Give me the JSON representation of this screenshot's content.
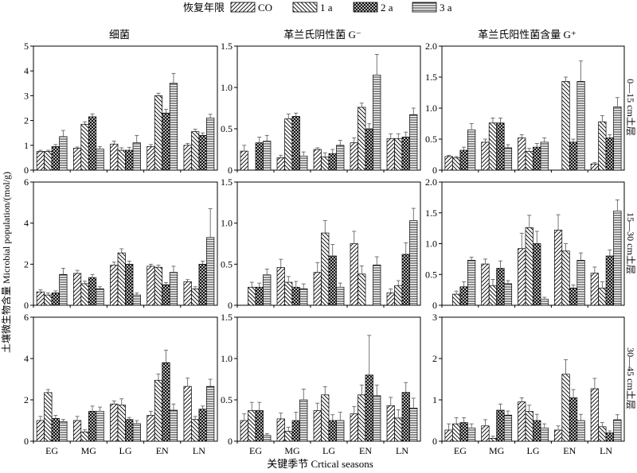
{
  "legend": {
    "title": "恢复年限",
    "entries": [
      "CO",
      "1 a",
      "2 a",
      "3 a"
    ]
  },
  "column_titles": [
    "细菌",
    "革兰氏阴性菌 G⁻",
    "革兰氏阳性菌含量 G⁺"
  ],
  "row_labels": [
    "0—15 cm土层",
    "15—30 cm土层",
    "30—45 cm土层"
  ],
  "ylabel": "土壤微生物含量 Microbial population/(mol/g)",
  "xlabel": "关键季节 Crtical seasons",
  "colors": {
    "ink": "#000000",
    "background": "#ffffff"
  },
  "chart_data": [
    {
      "type": "bar",
      "row": "0—15 cm土层",
      "column": "细菌",
      "ylim": [
        0,
        5
      ],
      "yticks": [
        "0",
        "1",
        "2",
        "3",
        "4",
        "5"
      ],
      "categories": [
        "EG",
        "MG",
        "LG",
        "EN",
        "LN"
      ],
      "series": [
        {
          "name": "CO",
          "values": [
            0.75,
            0.88,
            1.05,
            0.95,
            1.0
          ],
          "errors": [
            0.05,
            0.05,
            0.12,
            0.08,
            0.08
          ]
        },
        {
          "name": "1 a",
          "values": [
            0.75,
            1.85,
            0.8,
            3.0,
            1.55
          ],
          "errors": [
            0.05,
            0.1,
            0.1,
            0.1,
            0.1
          ]
        },
        {
          "name": "2 a",
          "values": [
            0.95,
            2.15,
            0.8,
            2.3,
            1.4
          ],
          "errors": [
            0.08,
            0.12,
            0.12,
            0.15,
            0.1
          ]
        },
        {
          "name": "3 a",
          "values": [
            1.35,
            0.85,
            1.1,
            3.5,
            2.1
          ],
          "errors": [
            0.25,
            0.1,
            0.3,
            0.4,
            0.15
          ]
        }
      ]
    },
    {
      "type": "bar",
      "row": "0—15 cm土层",
      "column": "革兰氏阴性菌 G⁻",
      "ylim": [
        0,
        1.5
      ],
      "yticks": [
        "0",
        "0.5",
        "1.0",
        "1.5"
      ],
      "categories": [
        "EG",
        "MG",
        "LG",
        "EN",
        "LN"
      ],
      "series": [
        {
          "name": "CO",
          "values": [
            0.23,
            0.15,
            0.25,
            0.33,
            0.38
          ],
          "errors": [
            0.07,
            0.03,
            0.02,
            0.06,
            0.06
          ]
        },
        {
          "name": "1 a",
          "values": [
            0.0,
            0.62,
            0.16,
            0.76,
            0.38
          ],
          "errors": [
            0.0,
            0.06,
            0.05,
            0.05,
            0.06
          ]
        },
        {
          "name": "2 a",
          "values": [
            0.33,
            0.65,
            0.2,
            0.5,
            0.4
          ],
          "errors": [
            0.07,
            0.04,
            0.05,
            0.06,
            0.06
          ]
        },
        {
          "name": "3 a",
          "values": [
            0.35,
            0.17,
            0.3,
            1.15,
            0.67
          ],
          "errors": [
            0.07,
            0.05,
            0.06,
            0.25,
            0.08
          ]
        }
      ]
    },
    {
      "type": "bar",
      "row": "0—15 cm土层",
      "column": "革兰氏阳性菌含量 G⁺",
      "ylim": [
        0,
        2.0
      ],
      "yticks": [
        "0",
        "0.5",
        "1.0",
        "1.5",
        "2.0"
      ],
      "categories": [
        "EG",
        "MG",
        "LG",
        "EN",
        "LN"
      ],
      "series": [
        {
          "name": "CO",
          "values": [
            0.22,
            0.45,
            0.52,
            0.0,
            0.1
          ],
          "errors": [
            0.02,
            0.05,
            0.05,
            0.0,
            0.02
          ]
        },
        {
          "name": "1 a",
          "values": [
            0.2,
            0.76,
            0.3,
            1.43,
            0.78
          ],
          "errors": [
            0.02,
            0.08,
            0.05,
            0.07,
            0.1
          ]
        },
        {
          "name": "2 a",
          "values": [
            0.32,
            0.76,
            0.37,
            0.45,
            0.52
          ],
          "errors": [
            0.05,
            0.08,
            0.06,
            0.05,
            0.05
          ]
        },
        {
          "name": "3 a",
          "values": [
            0.65,
            0.36,
            0.45,
            1.43,
            1.02
          ],
          "errors": [
            0.1,
            0.05,
            0.07,
            0.33,
            0.15
          ]
        }
      ]
    },
    {
      "type": "bar",
      "row": "15—30 cm土层",
      "column": "细菌",
      "ylim": [
        0,
        6
      ],
      "yticks": [
        "0",
        "2",
        "4",
        "6"
      ],
      "categories": [
        "EG",
        "MG",
        "LG",
        "EN",
        "LN"
      ],
      "series": [
        {
          "name": "CO",
          "values": [
            0.65,
            1.55,
            1.95,
            1.9,
            1.15
          ],
          "errors": [
            0.1,
            0.15,
            0.15,
            0.1,
            0.1
          ]
        },
        {
          "name": "1 a",
          "values": [
            0.5,
            1.05,
            2.55,
            1.85,
            0.8
          ],
          "errors": [
            0.1,
            0.12,
            0.2,
            0.1,
            0.1
          ]
        },
        {
          "name": "2 a",
          "values": [
            0.6,
            1.35,
            2.0,
            1.0,
            2.0
          ],
          "errors": [
            0.1,
            0.15,
            0.15,
            0.1,
            0.15
          ]
        },
        {
          "name": "3 a",
          "values": [
            1.5,
            0.8,
            0.5,
            1.6,
            3.3
          ],
          "errors": [
            0.3,
            0.1,
            0.1,
            0.3,
            1.4
          ]
        }
      ]
    },
    {
      "type": "bar",
      "row": "15—30 cm土层",
      "column": "革兰氏阴性菌 G⁻",
      "ylim": [
        0,
        1.5
      ],
      "yticks": [
        "0",
        "0.5",
        "1.0",
        "1.5"
      ],
      "categories": [
        "EG",
        "MG",
        "LG",
        "EN",
        "LN"
      ],
      "series": [
        {
          "name": "CO",
          "values": [
            0.0,
            0.46,
            0.4,
            0.75,
            0.15
          ],
          "errors": [
            0.0,
            0.1,
            0.12,
            0.15,
            0.05
          ]
        },
        {
          "name": "1 a",
          "values": [
            0.22,
            0.28,
            0.88,
            0.38,
            0.24
          ],
          "errors": [
            0.06,
            0.07,
            0.15,
            0.1,
            0.06
          ]
        },
        {
          "name": "2 a",
          "values": [
            0.22,
            0.22,
            0.6,
            0.0,
            0.62
          ],
          "errors": [
            0.05,
            0.07,
            0.14,
            0.0,
            0.14
          ]
        },
        {
          "name": "3 a",
          "values": [
            0.37,
            0.2,
            0.22,
            0.49,
            1.03
          ],
          "errors": [
            0.07,
            0.06,
            0.05,
            0.1,
            0.15
          ]
        }
      ]
    },
    {
      "type": "bar",
      "row": "15—30 cm土层",
      "column": "革兰氏阳性菌含量 G⁺",
      "ylim": [
        0,
        2.0
      ],
      "yticks": [
        "0",
        "0.5",
        "1.0",
        "1.5",
        "2.0"
      ],
      "categories": [
        "EG",
        "MG",
        "LG",
        "EN",
        "LN"
      ],
      "series": [
        {
          "name": "CO",
          "values": [
            0.0,
            0.67,
            0.92,
            1.22,
            0.52
          ],
          "errors": [
            0.0,
            0.08,
            0.25,
            0.25,
            0.1
          ]
        },
        {
          "name": "1 a",
          "values": [
            0.18,
            0.32,
            1.26,
            0.88,
            0.28
          ],
          "errors": [
            0.05,
            0.1,
            0.2,
            0.12,
            0.1
          ]
        },
        {
          "name": "2 a",
          "values": [
            0.3,
            0.6,
            1.0,
            0.28,
            0.8
          ],
          "errors": [
            0.08,
            0.12,
            0.2,
            0.05,
            0.1
          ]
        },
        {
          "name": "3 a",
          "values": [
            0.73,
            0.35,
            0.1,
            0.73,
            1.53
          ],
          "errors": [
            0.05,
            0.05,
            0.03,
            0.12,
            0.18
          ]
        }
      ]
    },
    {
      "type": "bar",
      "row": "30—45 cm土层",
      "column": "细菌",
      "ylim": [
        0,
        6
      ],
      "yticks": [
        "0",
        "2",
        "4",
        "6"
      ],
      "categories": [
        "EG",
        "MG",
        "LG",
        "EN",
        "LN"
      ],
      "series": [
        {
          "name": "CO",
          "values": [
            1.0,
            1.0,
            1.8,
            1.25,
            2.65
          ],
          "errors": [
            0.2,
            0.2,
            0.15,
            0.2,
            0.4
          ]
        },
        {
          "name": "1 a",
          "values": [
            2.35,
            0.45,
            1.75,
            2.95,
            1.05
          ],
          "errors": [
            0.15,
            0.1,
            0.3,
            0.3,
            0.15
          ]
        },
        {
          "name": "2 a",
          "values": [
            1.1,
            1.45,
            1.05,
            3.8,
            1.55
          ],
          "errors": [
            0.15,
            0.25,
            0.1,
            0.6,
            0.15
          ]
        },
        {
          "name": "3 a",
          "values": [
            0.95,
            1.45,
            0.85,
            1.5,
            2.65
          ],
          "errors": [
            0.1,
            0.2,
            0.15,
            0.3,
            0.35
          ]
        }
      ]
    },
    {
      "type": "bar",
      "row": "30—45 cm土层",
      "column": "革兰氏阴性菌 G⁻",
      "ylim": [
        0,
        1.5
      ],
      "yticks": [
        "0",
        "0.5",
        "1.0",
        "1.5"
      ],
      "categories": [
        "EG",
        "MG",
        "LG",
        "EN",
        "LN"
      ],
      "series": [
        {
          "name": "CO",
          "values": [
            0.25,
            0.27,
            0.37,
            0.33,
            0.43
          ],
          "errors": [
            0.08,
            0.07,
            0.09,
            0.09,
            0.1
          ]
        },
        {
          "name": "1 a",
          "values": [
            0.37,
            0.12,
            0.56,
            0.56,
            0.28
          ],
          "errors": [
            0.1,
            0.05,
            0.1,
            0.12,
            0.1
          ]
        },
        {
          "name": "2 a",
          "values": [
            0.37,
            0.25,
            0.25,
            0.8,
            0.59
          ],
          "errors": [
            0.1,
            0.1,
            0.07,
            0.48,
            0.12
          ]
        },
        {
          "name": "3 a",
          "values": [
            0.07,
            0.5,
            0.25,
            0.55,
            0.4
          ],
          "errors": [
            0.02,
            0.13,
            0.1,
            0.13,
            0.12
          ]
        }
      ]
    },
    {
      "type": "bar",
      "row": "30—45 cm土层",
      "column": "革兰氏阳性菌含量 G⁺",
      "ylim": [
        0,
        3
      ],
      "yticks": [
        "0",
        "1",
        "2",
        "3"
      ],
      "categories": [
        "EG",
        "MG",
        "LG",
        "EN",
        "LN"
      ],
      "series": [
        {
          "name": "CO",
          "values": [
            0.27,
            0.37,
            0.95,
            0.27,
            1.27
          ],
          "errors": [
            0.15,
            0.15,
            0.1,
            0.1,
            0.25
          ]
        },
        {
          "name": "1 a",
          "values": [
            0.42,
            0.07,
            0.72,
            1.62,
            0.35
          ],
          "errors": [
            0.15,
            0.05,
            0.15,
            0.35,
            0.1
          ]
        },
        {
          "name": "2 a",
          "values": [
            0.45,
            0.75,
            0.5,
            1.05,
            0.2
          ],
          "errors": [
            0.12,
            0.15,
            0.15,
            0.2,
            0.05
          ]
        },
        {
          "name": "3 a",
          "values": [
            0.32,
            0.63,
            0.32,
            0.5,
            0.52
          ],
          "errors": [
            0.1,
            0.1,
            0.1,
            0.15,
            0.12
          ]
        }
      ]
    }
  ]
}
